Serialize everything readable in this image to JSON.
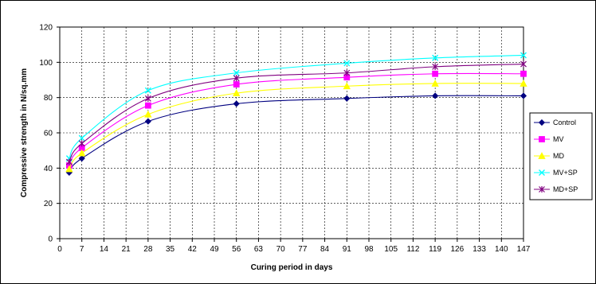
{
  "chart_data": {
    "type": "line",
    "title": "",
    "xlabel": "Curing period in days",
    "ylabel": "Compressive strength in N/sq.mm",
    "xlim": [
      0,
      147
    ],
    "ylim": [
      0,
      120
    ],
    "xticks": [
      0,
      7,
      14,
      21,
      28,
      35,
      42,
      49,
      56,
      63,
      70,
      77,
      84,
      91,
      98,
      105,
      112,
      119,
      126,
      133,
      140,
      147
    ],
    "yticks": [
      0,
      20,
      40,
      60,
      80,
      100,
      120
    ],
    "grid": "dashed",
    "legend_position": "right",
    "x": [
      3,
      7,
      28,
      56,
      91,
      119,
      147
    ],
    "series": [
      {
        "name": "Control",
        "values": [
          37.5,
          45.5,
          66.5,
          76.5,
          79.5,
          81.0,
          81.0
        ],
        "color": "#000080",
        "marker": "diamond"
      },
      {
        "name": "MV",
        "values": [
          41.5,
          51.5,
          75.5,
          87.5,
          91.5,
          93.5,
          93.5
        ],
        "color": "#ff00ff",
        "marker": "square"
      },
      {
        "name": "MD",
        "values": [
          39.5,
          48.5,
          70.5,
          82.5,
          86.5,
          88.0,
          88.0
        ],
        "color": "#ffff00",
        "marker": "triangle"
      },
      {
        "name": "MV+SP",
        "values": [
          45.5,
          57.0,
          84.0,
          94.0,
          99.5,
          102.5,
          104.0
        ],
        "color": "#00ffff",
        "marker": "x"
      },
      {
        "name": "MD+SP",
        "values": [
          43.5,
          54.0,
          79.5,
          91.0,
          94.0,
          97.5,
          99.0
        ],
        "color": "#800080",
        "marker": "star"
      }
    ]
  }
}
